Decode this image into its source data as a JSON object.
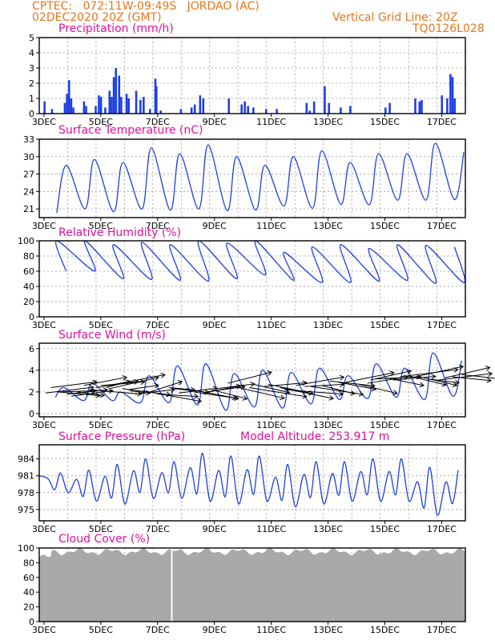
{
  "header": {
    "line1": "CPTEC:   072:11W-09:49S   JORDAO (AC)",
    "line2": "02DEC2020 20Z (GMT)",
    "grid_note": "Vertical Grid Line: 20Z",
    "model_code": "TQ0126L028"
  },
  "colors": {
    "header": "#e8751a",
    "title": "#e0109a",
    "series": "#1f3fe0",
    "bars": "#1f3fe0",
    "cloud": "#a9a9a9",
    "grid": "#999999"
  },
  "chart_data": [
    {
      "type": "bar",
      "title": "Precipitation (mm/h)",
      "yticks": [
        0,
        1,
        2,
        3,
        4,
        5
      ],
      "ylim": [
        0,
        5
      ],
      "xticks": [
        "3DEC",
        "5DEC",
        "7DEC",
        "9DEC",
        "11DEC",
        "13DEC",
        "15DEC",
        "17DEC"
      ],
      "grid": true,
      "events": [
        [
          0.5,
          0.8
        ],
        [
          1.2,
          0.3
        ],
        [
          2.4,
          0.7
        ],
        [
          2.6,
          1.3
        ],
        [
          2.8,
          2.2
        ],
        [
          3.0,
          1.0
        ],
        [
          3.2,
          0.4
        ],
        [
          4.2,
          0.8
        ],
        [
          4.4,
          0.5
        ],
        [
          5.3,
          0.5
        ],
        [
          5.6,
          1.2
        ],
        [
          5.8,
          1.1
        ],
        [
          6.2,
          0.4
        ],
        [
          6.6,
          1.5
        ],
        [
          6.8,
          1.1
        ],
        [
          7.0,
          2.4
        ],
        [
          7.2,
          3.0
        ],
        [
          7.5,
          2.5
        ],
        [
          7.7,
          1.1
        ],
        [
          8.2,
          1.3
        ],
        [
          8.4,
          1.0
        ],
        [
          9.1,
          1.5
        ],
        [
          9.5,
          0.9
        ],
        [
          9.8,
          1.1
        ],
        [
          10.4,
          0.3
        ],
        [
          10.9,
          2.3
        ],
        [
          11.0,
          1.8
        ],
        [
          11.4,
          0.2
        ],
        [
          13.3,
          0.3
        ],
        [
          14.3,
          0.4
        ],
        [
          14.6,
          0.6
        ],
        [
          15.1,
          1.2
        ],
        [
          15.4,
          1.0
        ],
        [
          17.8,
          1.0
        ],
        [
          19.0,
          0.6
        ],
        [
          19.3,
          0.8
        ],
        [
          19.6,
          0.5
        ],
        [
          20.1,
          0.4
        ],
        [
          21.3,
          0.3
        ],
        [
          22.3,
          0.3
        ],
        [
          25.1,
          0.7
        ],
        [
          25.4,
          0.2
        ],
        [
          25.8,
          0.8
        ],
        [
          26.8,
          1.8
        ],
        [
          27.2,
          0.7
        ],
        [
          28.3,
          0.4
        ],
        [
          29.2,
          0.5
        ],
        [
          32.5,
          0.4
        ],
        [
          32.9,
          0.7
        ],
        [
          35.3,
          1.0
        ],
        [
          35.7,
          0.8
        ],
        [
          35.9,
          0.9
        ],
        [
          37.8,
          1.2
        ],
        [
          38.3,
          1.0
        ],
        [
          38.6,
          2.6
        ],
        [
          38.8,
          2.4
        ],
        [
          39.0,
          1.0
        ]
      ]
    },
    {
      "type": "line",
      "title": "Surface Temperature (nC)",
      "yticks": [
        21,
        24,
        27,
        30,
        33
      ],
      "ylim": [
        19.5,
        33
      ],
      "mins": [
        22.5,
        20.3,
        21.0,
        20.5,
        21.0,
        20.8,
        21.0,
        20.7,
        20.8,
        21.5,
        21.1,
        21.8,
        21.7,
        22.5,
        22.5,
        22.6,
        22.0,
        22.0,
        22.5,
        22.8,
        22.3,
        22.8
      ],
      "maxs": [
        24.0,
        28.5,
        29.5,
        29.0,
        31.5,
        30.5,
        32.0,
        30.0,
        28.5,
        30.0,
        31.0,
        29.0,
        30.5,
        30.5,
        32.3,
        30.8,
        32.2,
        31.9,
        32.6,
        30.6,
        30.8,
        31.7
      ]
    },
    {
      "type": "line",
      "title": "Relative Humidity (%)",
      "yticks": [
        0,
        20,
        40,
        60,
        80,
        100
      ],
      "ylim": [
        0,
        100
      ],
      "mins": [
        85,
        60,
        60,
        50,
        49,
        48,
        47,
        50,
        55,
        48,
        45,
        45,
        47,
        48,
        44,
        45,
        40,
        45,
        38,
        48,
        44,
        47
      ],
      "maxs": [
        90,
        100,
        100,
        95,
        98,
        95,
        100,
        97,
        100,
        85,
        92,
        95,
        90,
        95,
        94,
        92,
        93,
        94,
        82,
        86,
        97,
        45
      ]
    },
    {
      "type": "line",
      "title": "Surface Wind (m/s)",
      "yticks": [
        0,
        2,
        4,
        6
      ],
      "ylim": [
        -0.3,
        6.5
      ],
      "mins": [
        1.5,
        1.5,
        1.2,
        1.2,
        1.0,
        1.0,
        0.8,
        0.3,
        0.6,
        0.5,
        0.9,
        1.3,
        1.4,
        1.5,
        1.3,
        1.6,
        1.2,
        1.5,
        1.0,
        1.1,
        1.5,
        1.2
      ],
      "maxs": [
        1.8,
        2.4,
        2.8,
        2.0,
        3.5,
        4.4,
        4.6,
        3.7,
        4.0,
        3.8,
        4.2,
        3.5,
        4.6,
        4.2,
        5.6,
        4.9,
        5.3,
        5.2,
        5.3,
        4.3,
        4.2,
        3.6
      ],
      "arrows": [
        [
          0.6,
          1.9,
          4.5,
          2.4
        ],
        [
          1.1,
          2.4,
          4.3,
          2.4
        ],
        [
          1.7,
          2.0,
          4.0,
          -1.6
        ],
        [
          2.1,
          2.0,
          3.2,
          0.5
        ],
        [
          2.6,
          1.8,
          3.8,
          1.8
        ],
        [
          3.0,
          1.6,
          3.9,
          2.4
        ],
        [
          3.6,
          2.0,
          2.5,
          -1.5
        ],
        [
          4.2,
          2.6,
          4.0,
          3.4
        ],
        [
          4.7,
          2.2,
          4.9,
          -1.8
        ],
        [
          5.3,
          2.4,
          4.0,
          2.6
        ],
        [
          5.8,
          2.6,
          4.1,
          1.5
        ],
        [
          6.3,
          2.4,
          2.2,
          2.7
        ],
        [
          6.6,
          2.3,
          4.6,
          4.7
        ],
        [
          7.1,
          2.7,
          4.7,
          4.0
        ],
        [
          7.8,
          2.3,
          4.5,
          -2.6
        ],
        [
          8.3,
          2.2,
          2.9,
          1.9
        ],
        [
          8.5,
          2.1,
          1.9,
          -1.0
        ],
        [
          9.0,
          1.8,
          3.7,
          1.9
        ],
        [
          9.7,
          2.1,
          5.5,
          -4.4
        ],
        [
          10.4,
          2.0,
          3.0,
          4.3
        ],
        [
          11.1,
          1.8,
          3.8,
          -1.0
        ],
        [
          12.2,
          2.4,
          2.4,
          -1.0
        ],
        [
          12.7,
          2.3,
          3.2,
          -1.6
        ],
        [
          13.1,
          1.9,
          3.6,
          2.0
        ],
        [
          13.8,
          2.3,
          4.7,
          -4.0
        ],
        [
          14.5,
          2.0,
          4.2,
          -2.8
        ],
        [
          15.4,
          1.9,
          3.5,
          3.0
        ],
        [
          15.7,
          2.0,
          3.6,
          2.2
        ],
        [
          16.2,
          2.2,
          3.3,
          -3.8
        ],
        [
          16.6,
          2.3,
          3.6,
          2.0
        ],
        [
          17.7,
          2.8,
          4.1,
          4.6
        ],
        [
          18.3,
          2.5,
          4.7,
          -4.9
        ],
        [
          19.7,
          2.4,
          5.4,
          -3.8
        ],
        [
          20.1,
          2.7,
          3.4,
          -3.5
        ],
        [
          21.1,
          2.5,
          4.0,
          1.6
        ],
        [
          21.5,
          2.7,
          4.2,
          -3.9
        ],
        [
          22.6,
          2.4,
          5.0,
          -4.6
        ],
        [
          23.0,
          2.2,
          5.5,
          -1.8
        ],
        [
          24.1,
          2.6,
          4.5,
          3.5
        ],
        [
          24.9,
          2.5,
          3.7,
          0.9
        ],
        [
          25.5,
          2.5,
          4.9,
          -3.3
        ],
        [
          26.5,
          2.6,
          3.1,
          -3.5
        ],
        [
          27.3,
          3.0,
          4.2,
          -2.0
        ],
        [
          28.1,
          2.9,
          3.5,
          -3.0
        ],
        [
          28.8,
          2.9,
          4.5,
          4.0
        ],
        [
          30.0,
          2.7,
          3.6,
          -3.8
        ],
        [
          30.8,
          2.8,
          3.8,
          2.7
        ],
        [
          31.1,
          3.1,
          3.8,
          3.8
        ],
        [
          31.6,
          3.2,
          4.2,
          0.9
        ],
        [
          32.6,
          3.3,
          3.5,
          -3.2
        ],
        [
          33.2,
          3.1,
          4.0,
          1.5
        ],
        [
          33.9,
          3.4,
          5.4,
          3.0
        ],
        [
          34.6,
          3.5,
          3.6,
          -3.9
        ],
        [
          35.3,
          3.4,
          4.5,
          4.3
        ],
        [
          35.7,
          3.4,
          3.5,
          -3.6
        ],
        [
          36.4,
          3.2,
          3.0,
          -1.6
        ],
        [
          37.5,
          3.1,
          5.0,
          2.7
        ],
        [
          38.1,
          3.3,
          4.2,
          4.3
        ],
        [
          38.8,
          3.4,
          3.6,
          -1.6
        ],
        [
          39.7,
          3.6,
          5.0,
          -2.5
        ]
      ]
    },
    {
      "type": "line",
      "title": "Surface Pressure (hPa)",
      "annotation": "Model Altitude: 253.917 m",
      "yticks": [
        975,
        978,
        981,
        984
      ],
      "ylim": [
        973,
        986.5
      ],
      "mins": [
        981,
        978,
        976.5,
        976,
        977,
        977,
        976.5,
        976,
        976.5,
        975.5,
        976,
        976.5,
        976.5,
        976.5,
        974,
        975,
        974,
        973.5,
        973.5,
        975,
        975,
        975
      ],
      "maxs": [
        982,
        981.5,
        982,
        983,
        984,
        983.5,
        985,
        984.5,
        984.5,
        983,
        983.5,
        983.5,
        984,
        984,
        982.5,
        982,
        981.5,
        981.5,
        981,
        979.5,
        979.5,
        980.5
      ]
    },
    {
      "type": "area",
      "title": "Cloud Cover (%)",
      "yticks": [
        0,
        20,
        40,
        60,
        80,
        100
      ],
      "ylim": [
        0,
        100
      ],
      "gap_at": 7.5,
      "mean": 95
    }
  ]
}
